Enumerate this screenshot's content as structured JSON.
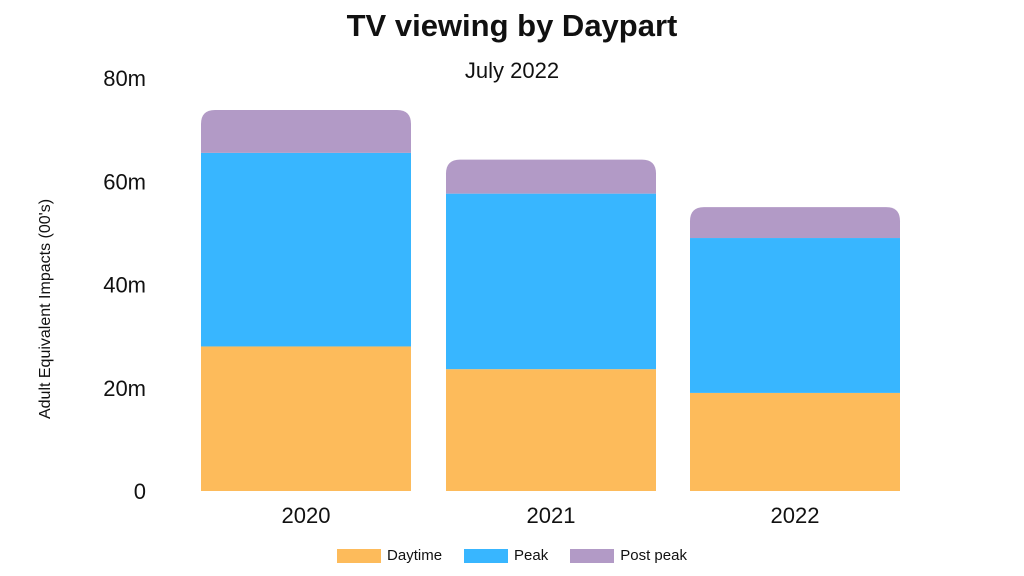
{
  "chart_data": {
    "type": "bar",
    "stacked": true,
    "title": "TV viewing by Daypart",
    "subtitle": "July 2022",
    "xlabel": "",
    "ylabel": "Adult Equivalent Impacts (00's)",
    "ylim": [
      0,
      80
    ],
    "y_ticks": [
      0,
      20,
      40,
      60,
      80
    ],
    "y_tick_labels": [
      "0",
      "20m",
      "40m",
      "60m",
      "80m"
    ],
    "grid": false,
    "legend_position": "bottom",
    "categories": [
      "2020",
      "2021",
      "2022"
    ],
    "series": [
      {
        "name": "Daytime",
        "color": "#fdbb5b",
        "values": [
          28.0,
          23.6,
          19.0
        ]
      },
      {
        "name": "Peak",
        "color": "#38b6ff",
        "values": [
          37.5,
          34.0,
          30.0
        ]
      },
      {
        "name": "Post peak",
        "color": "#b29ac6",
        "values": [
          8.3,
          6.6,
          6.0
        ]
      }
    ]
  }
}
